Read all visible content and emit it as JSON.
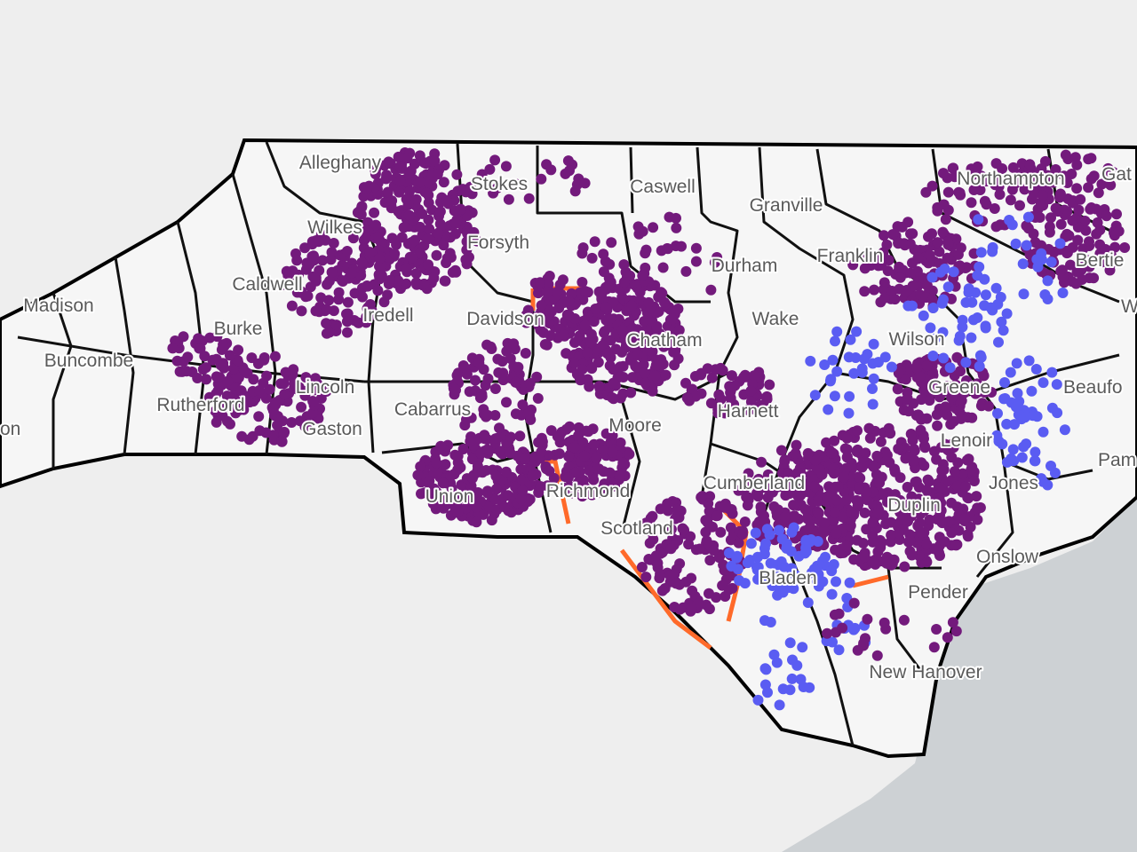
{
  "map": {
    "county_labels": [
      "Alleghany",
      "Stokes",
      "Caswell",
      "Granville",
      "Northampton",
      "Gat",
      "Wilkes",
      "Forsyth",
      "Durham",
      "Franklin",
      "Bertie",
      "Caldwell",
      "Madison",
      "Iredell",
      "Davidson",
      "Chatham",
      "Wake",
      "Wilson",
      "Was",
      "Burke",
      "Buncombe",
      "Lincoln",
      "Rutherford",
      "Gaston",
      "Cabarrus",
      "Harnett",
      "Greene",
      "Beaufo",
      "Moore",
      "Lenoir",
      "on",
      "Union",
      "Richmond",
      "Cumberland",
      "Jones",
      "Pam",
      "Duplin",
      "Scotland",
      "Onslow",
      "Bladen",
      "Pender",
      "New Hanover"
    ]
  }
}
